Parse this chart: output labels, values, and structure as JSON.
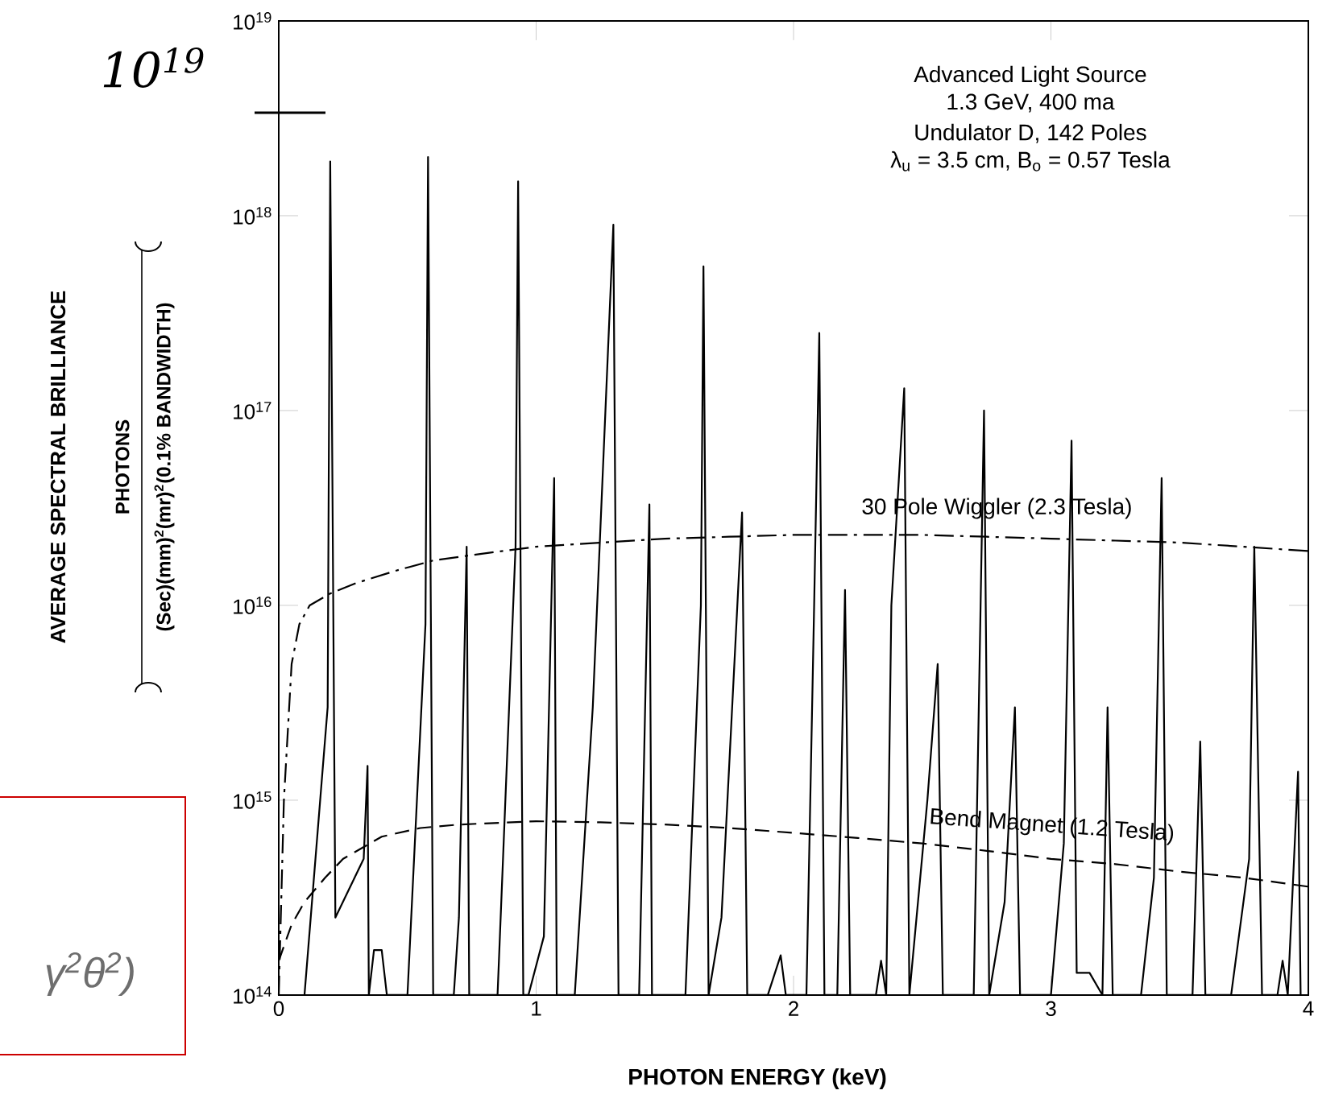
{
  "chart_data": {
    "type": "line",
    "xlabel": "PHOTON ENERGY (keV)",
    "annotations": [
      "AVERAGE SPECTRAL BRILLIANCE",
      "Advanced Light Source",
      "1.3 GeV, 400 ma",
      "Undulator D, 142 Poles",
      "λ$_{u}$ = 3.5 cm, B$_{o}$ = 0.57 Tesla",
      "PHOTONS",
      "(Sec)(mm)$^{2}$(mr)$^{2}$(0.1% BANDWIDTH)",
      "10$^{19}$",
      "γ$^{2}$θ$^{2}$)"
    ],
    "xlim": [
      0,
      4
    ],
    "xticks": [
      0,
      1,
      2,
      3,
      4
    ],
    "ylim": [
      100000000000000.0,
      1e+19
    ],
    "yticks": [
      {
        "value": 100000000000000.0,
        "label": "10$^{14}$"
      },
      {
        "value": 1000000000000000.0,
        "label": "10$^{15}$"
      },
      {
        "value": 1e+16,
        "label": "10$^{16}$"
      },
      {
        "value": 1e+17,
        "label": "10$^{17}$"
      },
      {
        "value": 1e+18,
        "label": "10$^{18}$"
      },
      {
        "value": 1e+19,
        "label": "10$^{19}$"
      }
    ],
    "log": true,
    "grid": false,
    "legend": false,
    "marker": "none",
    "series": [
      {
        "color": "#000000",
        "line_style": "solid",
        "x": [
          0.1,
          0.19,
          0.2,
          0.22,
          0.33,
          0.345,
          0.35,
          0.37,
          0.4,
          0.42,
          0.5,
          0.57,
          0.58,
          0.6,
          0.68,
          0.7,
          0.73,
          0.74,
          0.85,
          0.92,
          0.93,
          0.95,
          0.97,
          1.03,
          1.07,
          1.08,
          1.15,
          1.22,
          1.3,
          1.32,
          1.4,
          1.44,
          1.45,
          1.58,
          1.64,
          1.65,
          1.67,
          1.72,
          1.8,
          1.82,
          1.9,
          1.95,
          1.97,
          2.05,
          2.08,
          2.1,
          2.12,
          2.17,
          2.2,
          2.22,
          2.32,
          2.34,
          2.36,
          2.38,
          2.43,
          2.45,
          2.52,
          2.56,
          2.58,
          2.7,
          2.74,
          2.76,
          2.82,
          2.86,
          2.88,
          3.0,
          3.05,
          3.08,
          3.1,
          3.15,
          3.2,
          3.22,
          3.24,
          3.35,
          3.4,
          3.43,
          3.45,
          3.55,
          3.58,
          3.6,
          3.7,
          3.77,
          3.79,
          3.82,
          3.88,
          3.9,
          3.92,
          3.96,
          3.97
        ],
        "values": [
          100000000000000.0,
          3000000000000000.0,
          1.9e+18,
          250000000000000.0,
          500000000000000.0,
          1500000000000000.0,
          100000000000000.0,
          170000000000000.0,
          170000000000000.0,
          100000000000000.0,
          100000000000000.0,
          8000000000000000.0,
          2e+18,
          100000000000000.0,
          100000000000000.0,
          250000000000000.0,
          2e+16,
          100000000000000.0,
          100000000000000.0,
          2e+16,
          1.5e+18,
          100000000000000.0,
          100000000000000.0,
          200000000000000.0,
          4.5e+16,
          100000000000000.0,
          100000000000000.0,
          3000000000000000.0,
          9e+17,
          100000000000000.0,
          100000000000000.0,
          3.3e+16,
          100000000000000.0,
          100000000000000.0,
          1e+16,
          5.5e+17,
          100000000000000.0,
          250000000000000.0,
          3e+16,
          100000000000000.0,
          100000000000000.0,
          160000000000000.0,
          100000000000000.0,
          100000000000000.0,
          1e+16,
          2.5e+17,
          100000000000000.0,
          100000000000000.0,
          1.2e+16,
          100000000000000.0,
          100000000000000.0,
          150000000000000.0,
          100000000000000.0,
          1e+16,
          1.3e+17,
          100000000000000.0,
          1000000000000000.0,
          5000000000000000.0,
          100000000000000.0,
          100000000000000.0,
          1e+17,
          100000000000000.0,
          300000000000000.0,
          3000000000000000.0,
          100000000000000.0,
          100000000000000.0,
          600000000000000.0,
          7e+16,
          130000000000000.0,
          130000000000000.0,
          100000000000000.0,
          3000000000000000.0,
          100000000000000.0,
          100000000000000.0,
          400000000000000.0,
          4.5e+16,
          100000000000000.0,
          100000000000000.0,
          2000000000000000.0,
          100000000000000.0,
          100000000000000.0,
          500000000000000.0,
          2e+16,
          100000000000000.0,
          100000000000000.0,
          150000000000000.0,
          100000000000000.0,
          1400000000000000.0,
          100000000000000.0
        ]
      },
      {
        "name": "30 Pole Wiggler (2.3 Tesla)",
        "color": "#000000",
        "line_style": "dashdot",
        "x": [
          0,
          0.02,
          0.05,
          0.08,
          0.12,
          0.2,
          0.3,
          0.45,
          0.6,
          0.8,
          1.0,
          1.25,
          1.5,
          1.75,
          2.0,
          2.25,
          2.5,
          2.75,
          3.0,
          3.25,
          3.5,
          3.75,
          4.0
        ],
        "values": [
          100000000000000.0,
          1000000000000000.0,
          5000000000000000.0,
          8000000000000000.0,
          1e+16,
          1.15e+16,
          1.3e+16,
          1.5e+16,
          1.7e+16,
          1.85e+16,
          2e+16,
          2.1e+16,
          2.2e+16,
          2.25e+16,
          2.3e+16,
          2.3e+16,
          2.3e+16,
          2.25e+16,
          2.2e+16,
          2.15e+16,
          2.1e+16,
          2e+16,
          1.9e+16
        ]
      },
      {
        "name": "Bend Magnet (1.2 Tesla)",
        "color": "#000000",
        "line_style": "dashed",
        "x": [
          0,
          0.05,
          0.1,
          0.18,
          0.25,
          0.4,
          0.55,
          0.7,
          1.0,
          1.25,
          1.5,
          1.75,
          2.0,
          2.25,
          2.5,
          2.75,
          3.0,
          3.25,
          3.5,
          3.75,
          4.0
        ],
        "values": [
          150000000000000.0,
          230000000000000.0,
          300000000000000.0,
          400000000000000.0,
          500000000000000.0,
          650000000000000.0,
          720000000000000.0,
          750000000000000.0,
          780000000000000.0,
          770000000000000.0,
          750000000000000.0,
          720000000000000.0,
          680000000000000.0,
          640000000000000.0,
          600000000000000.0,
          550000000000000.0,
          500000000000000.0,
          470000000000000.0,
          430000000000000.0,
          400000000000000.0,
          360000000000000.0
        ]
      }
    ]
  }
}
